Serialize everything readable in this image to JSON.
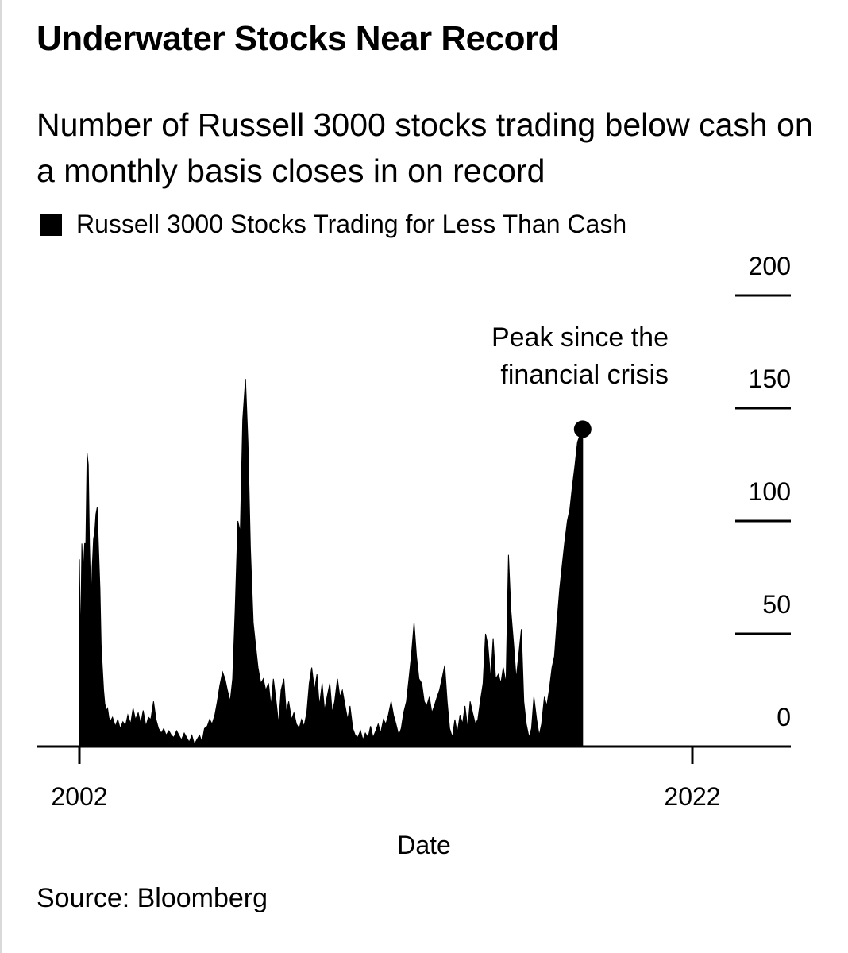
{
  "title": "Underwater Stocks Near Record",
  "subtitle": "Number of Russell 3000 stocks trading below cash on a monthly basis closes in on record",
  "legend": {
    "label": "Russell 3000 Stocks Trading for Less Than Cash"
  },
  "source": "Source: Bloomberg",
  "annotation": {
    "line1": "Peak since the",
    "line2": "financial crisis"
  },
  "colors": {
    "fill": "#000000",
    "background": "#ffffff"
  },
  "chart_data": {
    "type": "area",
    "title": "Underwater Stocks Near Record",
    "xlabel": "Date",
    "ylabel": "",
    "x_tick_labels": [
      "2002",
      "2022"
    ],
    "y_ticks": [
      0,
      50,
      100,
      150,
      200
    ],
    "ylim": [
      0,
      200
    ],
    "xlim": [
      2002.0,
      2022.0
    ],
    "y_axis_side": "right",
    "grid": false,
    "legend_position": "top-left",
    "series": [
      {
        "name": "Russell 3000 Stocks Trading for Less Than Cash",
        "points": [
          [
            2002.0,
            83
          ],
          [
            2002.04,
            45
          ],
          [
            2002.08,
            90
          ],
          [
            2002.12,
            75
          ],
          [
            2002.17,
            90
          ],
          [
            2002.21,
            90
          ],
          [
            2002.25,
            130
          ],
          [
            2002.29,
            125
          ],
          [
            2002.33,
            90
          ],
          [
            2002.38,
            63
          ],
          [
            2002.42,
            80
          ],
          [
            2002.46,
            92
          ],
          [
            2002.5,
            95
          ],
          [
            2002.54,
            103
          ],
          [
            2002.58,
            106
          ],
          [
            2002.62,
            90
          ],
          [
            2002.67,
            70
          ],
          [
            2002.71,
            45
          ],
          [
            2002.75,
            35
          ],
          [
            2002.79,
            25
          ],
          [
            2002.83,
            19
          ],
          [
            2002.88,
            16
          ],
          [
            2002.92,
            17
          ],
          [
            2002.96,
            13
          ],
          [
            2003.0,
            11
          ],
          [
            2003.08,
            13
          ],
          [
            2003.17,
            9
          ],
          [
            2003.25,
            12
          ],
          [
            2003.33,
            8
          ],
          [
            2003.42,
            11
          ],
          [
            2003.5,
            9
          ],
          [
            2003.58,
            14
          ],
          [
            2003.67,
            10
          ],
          [
            2003.75,
            17
          ],
          [
            2003.83,
            12
          ],
          [
            2003.92,
            15
          ],
          [
            2004.0,
            10
          ],
          [
            2004.08,
            16
          ],
          [
            2004.17,
            9
          ],
          [
            2004.25,
            13
          ],
          [
            2004.33,
            12
          ],
          [
            2004.42,
            20
          ],
          [
            2004.5,
            12
          ],
          [
            2004.58,
            8
          ],
          [
            2004.67,
            6
          ],
          [
            2004.75,
            8
          ],
          [
            2004.83,
            5
          ],
          [
            2004.92,
            7
          ],
          [
            2005.0,
            5
          ],
          [
            2005.08,
            4
          ],
          [
            2005.17,
            7
          ],
          [
            2005.25,
            5
          ],
          [
            2005.33,
            3
          ],
          [
            2005.42,
            6
          ],
          [
            2005.5,
            4
          ],
          [
            2005.58,
            2
          ],
          [
            2005.67,
            5
          ],
          [
            2005.75,
            1
          ],
          [
            2005.83,
            3
          ],
          [
            2005.92,
            5
          ],
          [
            2006.0,
            2
          ],
          [
            2006.08,
            8
          ],
          [
            2006.17,
            9
          ],
          [
            2006.25,
            12
          ],
          [
            2006.33,
            10
          ],
          [
            2006.42,
            14
          ],
          [
            2006.5,
            20
          ],
          [
            2006.58,
            27
          ],
          [
            2006.67,
            33
          ],
          [
            2006.75,
            30
          ],
          [
            2006.83,
            25
          ],
          [
            2006.92,
            20
          ],
          [
            2007.0,
            30
          ],
          [
            2007.08,
            60
          ],
          [
            2007.17,
            100
          ],
          [
            2007.25,
            95
          ],
          [
            2007.33,
            145
          ],
          [
            2007.42,
            163
          ],
          [
            2007.5,
            135
          ],
          [
            2007.58,
            88
          ],
          [
            2007.67,
            55
          ],
          [
            2007.75,
            45
          ],
          [
            2007.83,
            35
          ],
          [
            2007.92,
            28
          ],
          [
            2008.0,
            30
          ],
          [
            2008.08,
            25
          ],
          [
            2008.17,
            28
          ],
          [
            2008.25,
            18
          ],
          [
            2008.33,
            30
          ],
          [
            2008.42,
            20
          ],
          [
            2008.5,
            10
          ],
          [
            2008.58,
            25
          ],
          [
            2008.67,
            30
          ],
          [
            2008.75,
            15
          ],
          [
            2008.83,
            20
          ],
          [
            2008.92,
            12
          ],
          [
            2009.0,
            15
          ],
          [
            2009.08,
            10
          ],
          [
            2009.17,
            8
          ],
          [
            2009.25,
            12
          ],
          [
            2009.33,
            9
          ],
          [
            2009.42,
            15
          ],
          [
            2009.5,
            28
          ],
          [
            2009.58,
            35
          ],
          [
            2009.67,
            25
          ],
          [
            2009.75,
            32
          ],
          [
            2009.83,
            18
          ],
          [
            2009.92,
            28
          ],
          [
            2010.0,
            16
          ],
          [
            2010.08,
            22
          ],
          [
            2010.17,
            28
          ],
          [
            2010.25,
            15
          ],
          [
            2010.33,
            20
          ],
          [
            2010.42,
            30
          ],
          [
            2010.5,
            22
          ],
          [
            2010.58,
            25
          ],
          [
            2010.67,
            18
          ],
          [
            2010.75,
            12
          ],
          [
            2010.83,
            18
          ],
          [
            2010.92,
            8
          ],
          [
            2011.0,
            5
          ],
          [
            2011.08,
            4
          ],
          [
            2011.17,
            7
          ],
          [
            2011.25,
            3
          ],
          [
            2011.33,
            6
          ],
          [
            2011.42,
            4
          ],
          [
            2011.5,
            9
          ],
          [
            2011.58,
            4
          ],
          [
            2011.67,
            7
          ],
          [
            2011.75,
            10
          ],
          [
            2011.83,
            6
          ],
          [
            2011.92,
            12
          ],
          [
            2012.0,
            10
          ],
          [
            2012.08,
            14
          ],
          [
            2012.17,
            20
          ],
          [
            2012.25,
            14
          ],
          [
            2012.33,
            10
          ],
          [
            2012.42,
            5
          ],
          [
            2012.5,
            8
          ],
          [
            2012.58,
            15
          ],
          [
            2012.67,
            20
          ],
          [
            2012.75,
            30
          ],
          [
            2012.83,
            40
          ],
          [
            2012.92,
            55
          ],
          [
            2013.0,
            40
          ],
          [
            2013.08,
            30
          ],
          [
            2013.17,
            28
          ],
          [
            2013.25,
            20
          ],
          [
            2013.33,
            18
          ],
          [
            2013.42,
            22
          ],
          [
            2013.5,
            15
          ],
          [
            2013.58,
            18
          ],
          [
            2013.67,
            22
          ],
          [
            2013.75,
            25
          ],
          [
            2013.83,
            30
          ],
          [
            2013.92,
            36
          ],
          [
            2014.0,
            20
          ],
          [
            2014.08,
            8
          ],
          [
            2014.17,
            4
          ],
          [
            2014.25,
            12
          ],
          [
            2014.33,
            6
          ],
          [
            2014.42,
            14
          ],
          [
            2014.5,
            10
          ],
          [
            2014.58,
            18
          ],
          [
            2014.67,
            8
          ],
          [
            2014.75,
            20
          ],
          [
            2014.83,
            15
          ],
          [
            2014.92,
            10
          ],
          [
            2015.0,
            12
          ],
          [
            2015.08,
            20
          ],
          [
            2015.17,
            28
          ],
          [
            2015.25,
            50
          ],
          [
            2015.33,
            45
          ],
          [
            2015.42,
            30
          ],
          [
            2015.5,
            48
          ],
          [
            2015.58,
            30
          ],
          [
            2015.67,
            32
          ],
          [
            2015.75,
            28
          ],
          [
            2015.83,
            35
          ],
          [
            2015.92,
            28
          ],
          [
            2016.0,
            85
          ],
          [
            2016.08,
            60
          ],
          [
            2016.17,
            45
          ],
          [
            2016.25,
            30
          ],
          [
            2016.33,
            40
          ],
          [
            2016.42,
            52
          ],
          [
            2016.5,
            20
          ],
          [
            2016.58,
            10
          ],
          [
            2016.67,
            4
          ],
          [
            2016.75,
            8
          ],
          [
            2016.83,
            22
          ],
          [
            2016.92,
            12
          ],
          [
            2017.0,
            5
          ],
          [
            2017.08,
            10
          ],
          [
            2017.17,
            22
          ],
          [
            2017.25,
            18
          ],
          [
            2017.33,
            25
          ],
          [
            2017.42,
            35
          ],
          [
            2017.5,
            40
          ],
          [
            2017.58,
            55
          ],
          [
            2017.67,
            70
          ],
          [
            2017.75,
            80
          ],
          [
            2017.83,
            90
          ],
          [
            2017.92,
            100
          ],
          [
            2018.0,
            105
          ],
          [
            2018.08,
            115
          ],
          [
            2018.17,
            125
          ],
          [
            2018.25,
            135
          ],
          [
            2018.33,
            138
          ],
          [
            2018.42,
            140
          ]
        ]
      }
    ],
    "peak_marker": {
      "x": 2018.42,
      "y": 140
    }
  }
}
